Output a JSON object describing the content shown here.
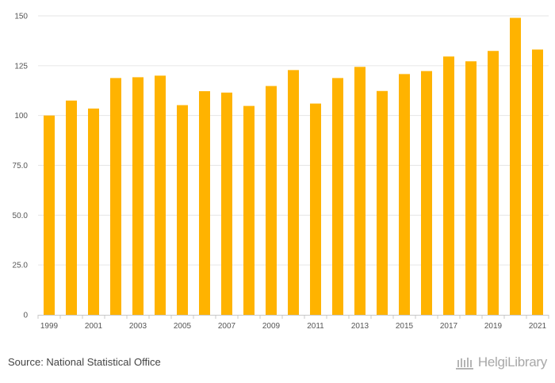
{
  "chart_data": {
    "type": "bar",
    "categories": [
      "1999",
      "2000",
      "2001",
      "2002",
      "2003",
      "2004",
      "2005",
      "2006",
      "2007",
      "2008",
      "2009",
      "2010",
      "2011",
      "2012",
      "2013",
      "2014",
      "2015",
      "2016",
      "2017",
      "2018",
      "2019",
      "2020",
      "2021"
    ],
    "values": [
      100.0,
      107.5,
      103.5,
      118.8,
      119.2,
      120.0,
      105.2,
      112.2,
      111.5,
      104.8,
      114.8,
      122.8,
      106.0,
      118.8,
      124.4,
      112.3,
      120.8,
      122.3,
      129.6,
      127.2,
      132.4,
      149.0,
      133.1
    ],
    "ylim": [
      0,
      150
    ],
    "yticks": [
      0,
      25,
      50,
      75,
      100,
      125,
      150
    ],
    "ytick_labels": [
      "0",
      "25.0",
      "50.0",
      "75.0",
      "100",
      "125",
      "150"
    ],
    "xtick_labels": [
      "1999",
      "2001",
      "2003",
      "2005",
      "2007",
      "2009",
      "2011",
      "2013",
      "2015",
      "2017",
      "2019",
      "2021"
    ],
    "grid": true,
    "bar_color": "#FFB300",
    "title": "",
    "xlabel": "",
    "ylabel": ""
  },
  "footer": {
    "source": "Source: National Statistical Office",
    "logo_text": "HelgiLibrary"
  }
}
